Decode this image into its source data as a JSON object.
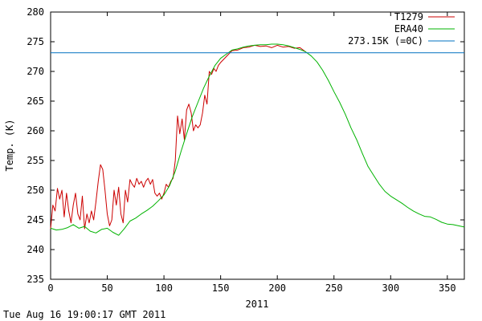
{
  "chart_data": {
    "type": "line",
    "title": "",
    "xlabel": "2011",
    "ylabel": "Temp. (K)",
    "xlim": [
      0,
      365
    ],
    "ylim": [
      235,
      280
    ],
    "xticks": [
      0,
      50,
      100,
      150,
      200,
      250,
      300,
      350
    ],
    "yticks": [
      235,
      240,
      245,
      250,
      255,
      260,
      265,
      270,
      275,
      280
    ],
    "grid": false,
    "legend_position": "top-right",
    "series": [
      {
        "name": "T1279",
        "color": "#cc0000",
        "x": [
          0,
          2,
          4,
          6,
          8,
          10,
          12,
          14,
          16,
          18,
          20,
          22,
          24,
          26,
          28,
          30,
          32,
          34,
          36,
          38,
          40,
          42,
          44,
          46,
          48,
          50,
          52,
          54,
          56,
          58,
          60,
          62,
          64,
          66,
          68,
          70,
          72,
          74,
          76,
          78,
          80,
          82,
          84,
          86,
          88,
          90,
          92,
          94,
          96,
          98,
          100,
          102,
          104,
          106,
          108,
          110,
          112,
          114,
          116,
          118,
          120,
          122,
          124,
          126,
          128,
          130,
          132,
          134,
          136,
          138,
          140,
          142,
          144,
          146,
          148,
          150,
          155,
          160,
          165,
          170,
          175,
          180,
          185,
          190,
          195,
          200,
          205,
          210,
          215,
          220,
          225
        ],
        "values": [
          243.5,
          247.5,
          246.5,
          250.3,
          248.5,
          250.0,
          245.5,
          249.5,
          246.5,
          244.5,
          247.5,
          249.5,
          246.0,
          245.0,
          249.0,
          243.5,
          246.0,
          244.5,
          246.5,
          245.0,
          248.0,
          251.5,
          254.3,
          253.5,
          250.0,
          246.0,
          244.0,
          245.0,
          250.0,
          247.5,
          250.5,
          246.0,
          244.5,
          250.0,
          248.0,
          251.8,
          251.0,
          250.5,
          252.0,
          251.0,
          251.5,
          250.5,
          251.5,
          252.0,
          251.0,
          251.8,
          249.5,
          249.0,
          249.5,
          248.5,
          249.5,
          251.0,
          250.5,
          251.5,
          252.0,
          255.0,
          262.5,
          259.5,
          262.0,
          258.5,
          263.5,
          264.5,
          263.0,
          260.0,
          261.0,
          260.5,
          261.0,
          263.0,
          266.0,
          264.5,
          270.0,
          269.5,
          270.5,
          270.0,
          271.0,
          271.5,
          272.5,
          273.5,
          273.6,
          274.0,
          274.1,
          274.4,
          274.2,
          274.3,
          274.0,
          274.4,
          274.1,
          274.2,
          273.9,
          274.0,
          273.3
        ]
      },
      {
        "name": "ERA40",
        "color": "#00b300",
        "x": [
          0,
          5,
          10,
          15,
          20,
          25,
          30,
          35,
          40,
          45,
          50,
          55,
          60,
          65,
          70,
          75,
          80,
          85,
          90,
          95,
          100,
          105,
          110,
          115,
          120,
          125,
          130,
          135,
          140,
          145,
          150,
          155,
          160,
          165,
          170,
          175,
          180,
          185,
          190,
          195,
          200,
          205,
          210,
          215,
          220,
          225,
          230,
          235,
          240,
          245,
          250,
          255,
          260,
          265,
          270,
          275,
          280,
          285,
          290,
          295,
          300,
          305,
          310,
          315,
          320,
          325,
          330,
          335,
          340,
          345,
          350,
          355,
          360,
          365
        ],
        "values": [
          243.6,
          243.3,
          243.4,
          243.7,
          244.2,
          243.6,
          243.9,
          243.1,
          242.8,
          243.4,
          243.6,
          242.9,
          242.4,
          243.5,
          244.8,
          245.3,
          246.0,
          246.6,
          247.3,
          248.2,
          249.2,
          250.8,
          253.2,
          256.5,
          259.5,
          262.4,
          264.8,
          267.2,
          269.2,
          271.0,
          272.2,
          272.9,
          273.6,
          273.8,
          274.1,
          274.3,
          274.4,
          274.5,
          274.5,
          274.6,
          274.6,
          274.5,
          274.3,
          274.0,
          273.7,
          273.3,
          272.6,
          271.6,
          270.2,
          268.5,
          266.6,
          264.8,
          262.8,
          260.5,
          258.5,
          256.2,
          254.0,
          252.5,
          251.0,
          249.8,
          249.0,
          248.4,
          247.8,
          247.1,
          246.5,
          246.0,
          245.6,
          245.5,
          245.1,
          244.6,
          244.3,
          244.2,
          244.0,
          243.8
        ]
      },
      {
        "name": "273.15K (=0C)",
        "color": "#0070c0",
        "x": [
          0,
          365
        ],
        "values": [
          273.15,
          273.15
        ]
      }
    ]
  },
  "footer": {
    "timestamp": "Tue Aug 16 19:00:17 GMT 2011"
  }
}
